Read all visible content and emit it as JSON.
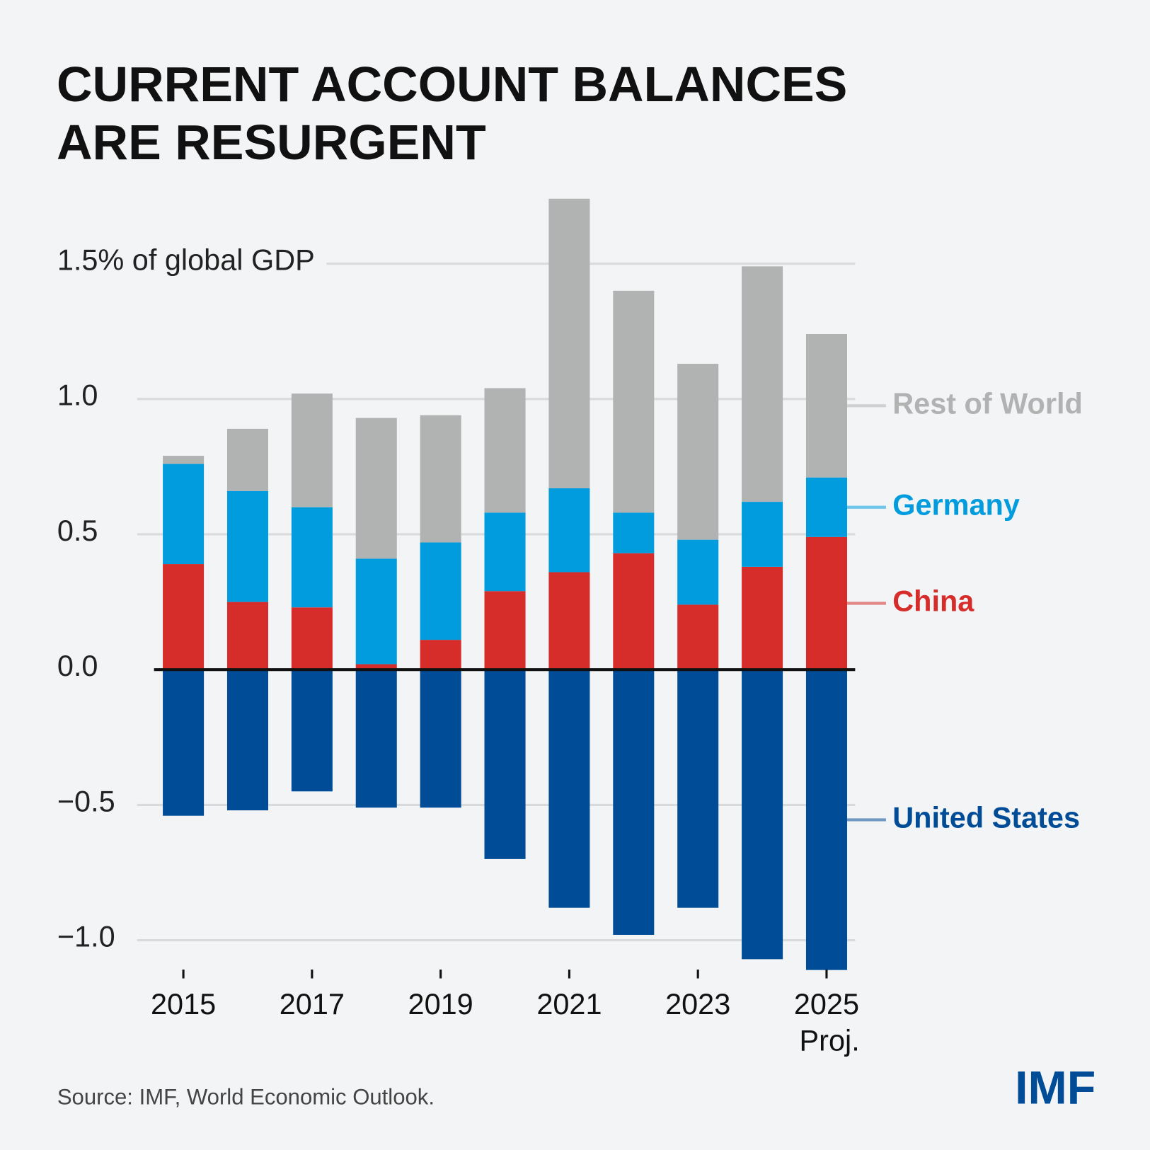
{
  "chart_data": {
    "type": "stacked-bar",
    "title": "CURRENT ACCOUNT BALANCES ARE RESURGENT",
    "categories": [
      "2015",
      null,
      "2017",
      null,
      "2019",
      null,
      "2021",
      null,
      "2023",
      null,
      "2025"
    ],
    "x_annotation": "Proj.",
    "series": [
      {
        "name": "United States",
        "color": "#004c97",
        "values": [
          -0.54,
          -0.52,
          -0.45,
          -0.51,
          -0.51,
          -0.7,
          -0.88,
          -0.98,
          -0.88,
          -1.07,
          -1.11
        ]
      },
      {
        "name": "China",
        "color": "#d62d2a",
        "values": [
          0.39,
          0.25,
          0.23,
          0.02,
          0.11,
          0.29,
          0.36,
          0.43,
          0.24,
          0.38,
          0.49
        ]
      },
      {
        "name": "Germany",
        "color": "#009cde",
        "values": [
          0.37,
          0.41,
          0.37,
          0.39,
          0.36,
          0.29,
          0.31,
          0.15,
          0.24,
          0.24,
          0.22
        ]
      },
      {
        "name": "Rest of World",
        "color": "#b1b2b2",
        "values": [
          0.03,
          0.23,
          0.42,
          0.52,
          0.47,
          0.46,
          1.07,
          0.82,
          0.65,
          0.87,
          0.53
        ]
      }
    ],
    "ylim": [
      -1.2,
      1.9
    ],
    "yticks": [
      {
        "value": -1,
        "label": "−1.0"
      },
      {
        "value": -0.5,
        "label": "−0.5"
      },
      {
        "value": 0,
        "label": "0.0"
      },
      0.5,
      {
        "value": 1,
        "label": "1.0"
      },
      {
        "value": 1.5,
        "label": "1.5% of global GDP"
      }
    ],
    "grid": true,
    "legend": "right",
    "source": "Source: IMF, World Economic Outlook.",
    "logo": "IMF"
  }
}
